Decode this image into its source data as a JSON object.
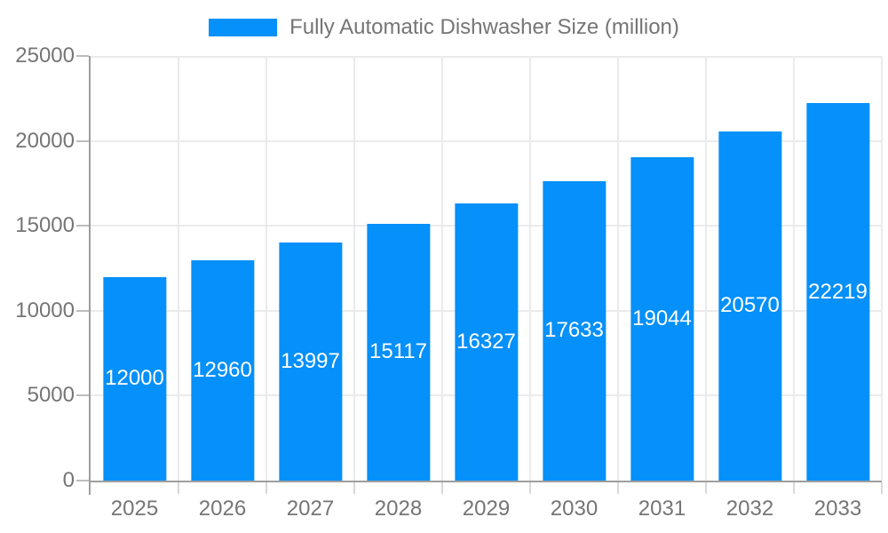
{
  "chart_data": {
    "type": "bar",
    "title": "",
    "series_name": "Fully Automatic Dishwasher Size (million)",
    "categories": [
      "2025",
      "2026",
      "2027",
      "2028",
      "2029",
      "2030",
      "2031",
      "2032",
      "2033"
    ],
    "values": [
      12000,
      12960,
      13997,
      15117,
      16327,
      17633,
      19044,
      20570,
      22219
    ],
    "xlabel": "",
    "ylabel": "",
    "ylim": [
      0,
      25000
    ],
    "ytick_step": 5000,
    "yticks": [
      0,
      5000,
      10000,
      15000,
      20000,
      25000
    ],
    "grid": true,
    "legend_position": "top",
    "bar_labels_inside": true,
    "colors": {
      "bar": "#0590FA",
      "bar_value_label": "#FFFFFF",
      "axis_text": "#757575",
      "axis_line": "#9E9E9E",
      "gridline": "#EBEBEB"
    }
  }
}
